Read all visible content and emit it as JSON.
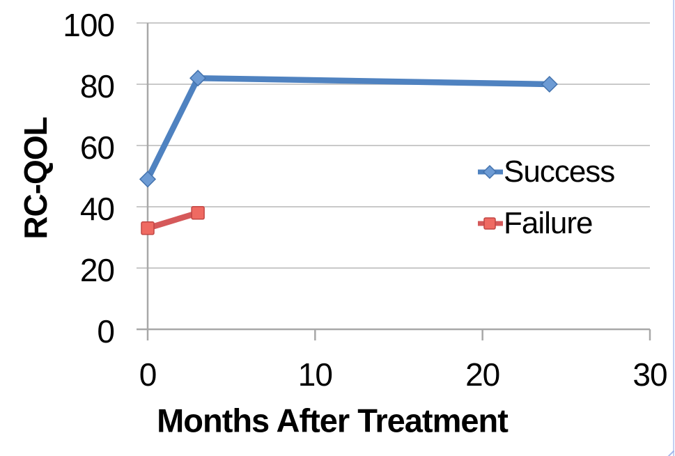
{
  "chart_data": {
    "type": "line",
    "title": "",
    "xlabel": "Months After Treatment",
    "ylabel": "RC-QOL",
    "xlim": [
      0,
      30
    ],
    "ylim": [
      0,
      100
    ],
    "x_ticks": [
      0,
      10,
      20,
      30
    ],
    "y_ticks": [
      0,
      20,
      40,
      60,
      80,
      100
    ],
    "grid": "horizontal",
    "legend_position": "inside-right",
    "series": [
      {
        "name": "Success",
        "marker": "diamond",
        "x": [
          0,
          3,
          24
        ],
        "y": [
          49,
          82,
          80
        ],
        "line_color": "#4f82c0",
        "marker_fill": "#6d9bd4",
        "marker_stroke": "#4372ad"
      },
      {
        "name": "Failure",
        "marker": "square",
        "x": [
          0,
          3
        ],
        "y": [
          33,
          38
        ],
        "line_color": "#d5595a",
        "marker_fill": "#ef6a62",
        "marker_stroke": "#c14542"
      }
    ],
    "colors": {
      "gridline": "#c9c9c9",
      "axis": "#a8a8a8",
      "text": "#000000",
      "frame_edge": "#8fa9e8"
    }
  }
}
